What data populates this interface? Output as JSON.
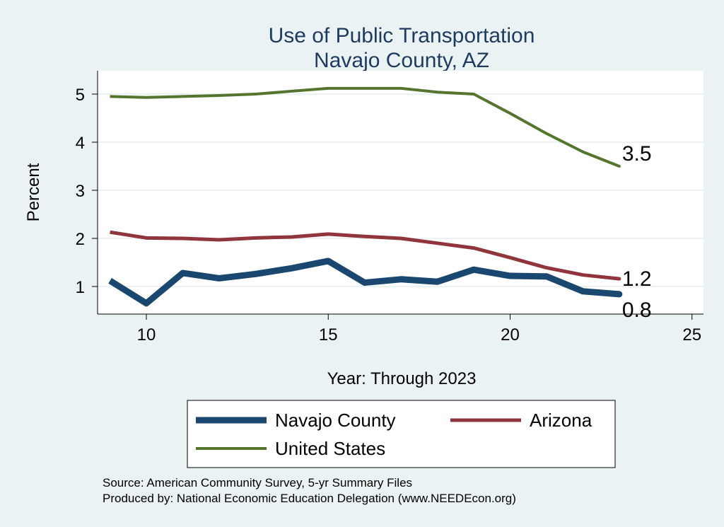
{
  "chart_data": {
    "type": "line",
    "title": "Use of Public Transportation",
    "subtitle": "Navajo County, AZ",
    "xlabel": "Year: Through 2023",
    "ylabel": "Percent",
    "xlim": [
      8.5,
      25.5
    ],
    "ylim": [
      0.45,
      5.5
    ],
    "xticks": [
      10,
      15,
      20,
      25
    ],
    "yticks": [
      1,
      2,
      3,
      4,
      5
    ],
    "grid": true,
    "legend_position": "bottom",
    "x": [
      9,
      10,
      11,
      12,
      13,
      14,
      15,
      16,
      17,
      18,
      19,
      20,
      21,
      22,
      23
    ],
    "series": [
      {
        "name": "Navajo County",
        "color": "#1a476f",
        "values": [
          1.12,
          0.65,
          1.28,
          1.17,
          1.26,
          1.38,
          1.53,
          1.08,
          1.15,
          1.1,
          1.35,
          1.22,
          1.21,
          0.9,
          0.84
        ],
        "end_label": "0.8"
      },
      {
        "name": "Arizona",
        "color": "#90353b",
        "values": [
          2.13,
          2.01,
          2.0,
          1.97,
          2.01,
          2.03,
          2.09,
          2.04,
          2.0,
          1.9,
          1.8,
          1.6,
          1.39,
          1.24,
          1.16
        ],
        "end_label": "1.2"
      },
      {
        "name": "United States",
        "color": "#55752f",
        "values": [
          4.95,
          4.93,
          4.95,
          4.97,
          5.0,
          5.06,
          5.12,
          5.12,
          5.12,
          5.04,
          5.0,
          4.6,
          4.18,
          3.8,
          3.5
        ],
        "end_label": "3.5"
      }
    ],
    "notes": [
      "Source: American Community Survey, 5-yr Summary Files",
      "Produced by: National Economic Education Delegation (www.NEEDEcon.org)"
    ]
  }
}
